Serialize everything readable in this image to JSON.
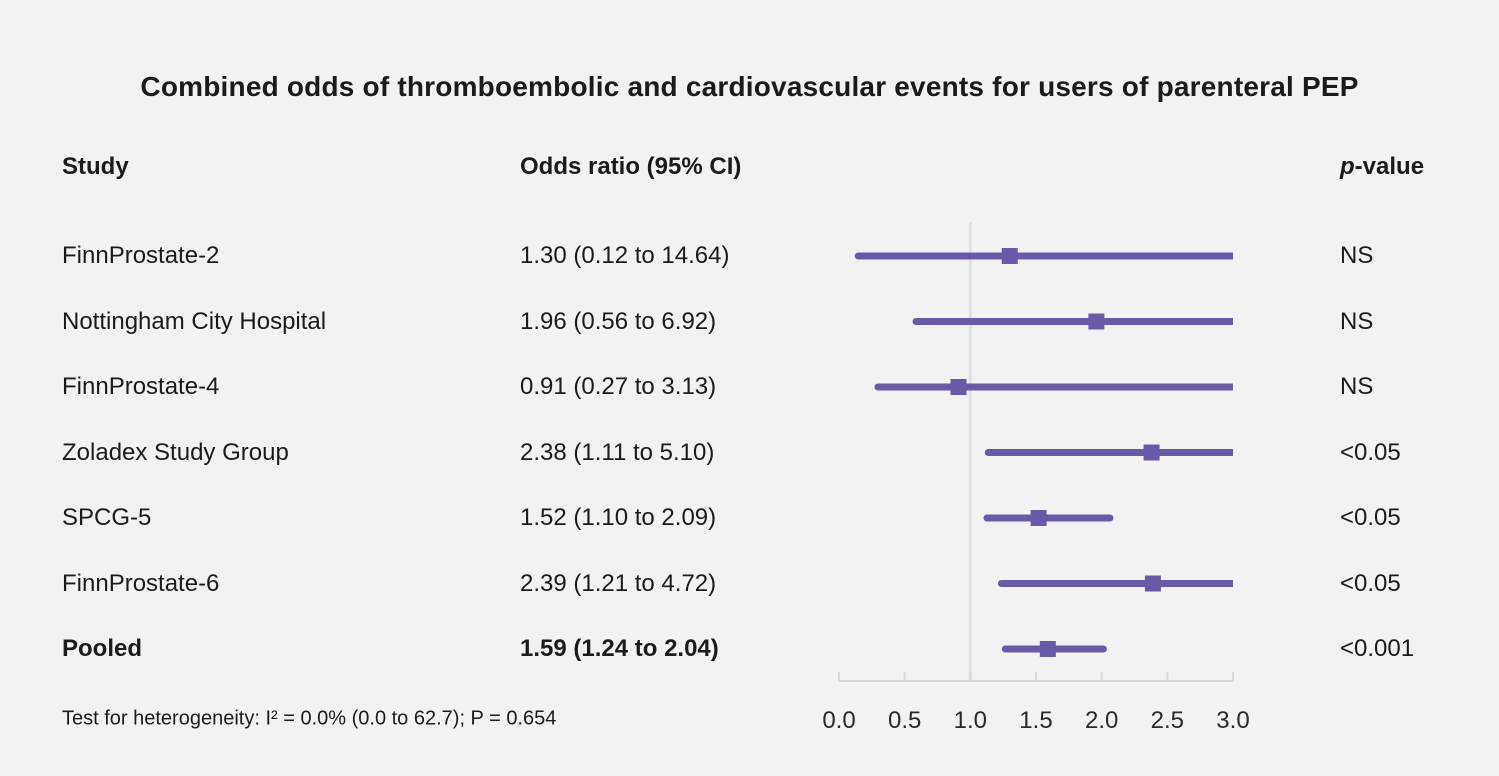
{
  "title": "Combined odds of thromboembolic and cardiovascular events for users of parenteral PEP",
  "header": {
    "study": "Study",
    "odds_ratio": "Odds ratio (95% CI)",
    "p_italic": "p",
    "p_rest": "-value"
  },
  "footnote": "Test for heterogeneity: I² = 0.0% (0.0 to 62.7); P = 0.654",
  "colors": {
    "background": "#f2f2f2",
    "text": "#1b1b1b",
    "purple": "#6959a6",
    "axis": "#d5d8db",
    "ref_line": "#dde1e5",
    "tick_label": "#2a2a2a"
  },
  "chart_data": {
    "type": "forest",
    "title": "Combined odds of thromboembolic and cardiovascular events for users of parenteral PEP",
    "xlabel": "",
    "x_ticks": [
      "0.0",
      "0.5",
      "1.0",
      "1.5",
      "2.0",
      "2.5",
      "3.0"
    ],
    "x_tick_values": [
      0.0,
      0.5,
      1.0,
      1.5,
      2.0,
      2.5,
      3.0
    ],
    "xlim": [
      0.0,
      3.0
    ],
    "ref_line_x": 1.0,
    "clip_max": 3.0,
    "rows": [
      {
        "study": "FinnProstate-2",
        "or": 1.3,
        "ci_low": 0.12,
        "ci_high": 14.64,
        "or_label": "1.30 (0.12 to 14.64)",
        "p": "NS",
        "bold": false
      },
      {
        "study": "Nottingham City Hospital",
        "or": 1.96,
        "ci_low": 0.56,
        "ci_high": 6.92,
        "or_label": "1.96 (0.56 to 6.92)",
        "p": "NS",
        "bold": false
      },
      {
        "study": "FinnProstate-4",
        "or": 0.91,
        "ci_low": 0.27,
        "ci_high": 3.13,
        "or_label": "0.91 (0.27 to 3.13)",
        "p": "NS",
        "bold": false
      },
      {
        "study": "Zoladex Study Group",
        "or": 2.38,
        "ci_low": 1.11,
        "ci_high": 5.1,
        "or_label": "2.38 (1.11 to 5.10)",
        "p": "<0.05",
        "bold": false
      },
      {
        "study": "SPCG-5",
        "or": 1.52,
        "ci_low": 1.1,
        "ci_high": 2.09,
        "or_label": "1.52 (1.10 to 2.09)",
        "p": "<0.05",
        "bold": false
      },
      {
        "study": "FinnProstate-6",
        "or": 2.39,
        "ci_low": 1.21,
        "ci_high": 4.72,
        "or_label": "2.39 (1.21 to 4.72)",
        "p": "<0.05",
        "bold": false
      },
      {
        "study": "Pooled",
        "or": 1.59,
        "ci_low": 1.24,
        "ci_high": 2.04,
        "or_label": "1.59 (1.24 to 2.04)",
        "p": "<0.001",
        "bold": true
      }
    ],
    "heterogeneity": "Test for heterogeneity: I² = 0.0% (0.0 to 62.7); P = 0.654"
  }
}
